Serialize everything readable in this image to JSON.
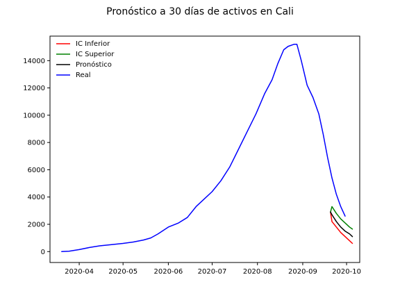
{
  "chart_data": {
    "type": "line",
    "title": "Pronóstico a 30 días de activos en Cali",
    "xlabel": "",
    "ylabel": "",
    "x_axis": {
      "type": "date",
      "range": [
        "2020-03-12",
        "2020-10-10"
      ],
      "tick_dates": [
        "2020-04-01",
        "2020-05-01",
        "2020-06-01",
        "2020-07-01",
        "2020-08-01",
        "2020-09-01",
        "2020-10-01"
      ],
      "tick_labels": [
        "2020-04",
        "2020-05",
        "2020-06",
        "2020-07",
        "2020-08",
        "2020-09",
        "2020-10"
      ]
    },
    "y_axis": {
      "range": [
        -800,
        15800
      ],
      "ticks": [
        0,
        2000,
        4000,
        6000,
        8000,
        10000,
        12000,
        14000
      ],
      "tick_labels": [
        "0",
        "2000",
        "4000",
        "6000",
        "8000",
        "10000",
        "12000",
        "14000"
      ]
    },
    "grid": false,
    "legend": {
      "placement": "top-left"
    },
    "series": [
      {
        "name": "IC Inferior",
        "color": "#ff0000",
        "points": [
          [
            "2020-09-20",
            2900
          ],
          [
            "2020-09-21",
            2200
          ],
          [
            "2020-09-24",
            1800
          ],
          [
            "2020-09-27",
            1400
          ],
          [
            "2020-09-30",
            1100
          ],
          [
            "2020-10-03",
            800
          ],
          [
            "2020-10-05",
            600
          ]
        ]
      },
      {
        "name": "IC Superior",
        "color": "#008000",
        "points": [
          [
            "2020-09-20",
            2900
          ],
          [
            "2020-09-21",
            3300
          ],
          [
            "2020-09-24",
            2800
          ],
          [
            "2020-09-27",
            2400
          ],
          [
            "2020-09-30",
            2100
          ],
          [
            "2020-10-03",
            1800
          ],
          [
            "2020-10-05",
            1650
          ]
        ]
      },
      {
        "name": "Pronóstico",
        "color": "#000000",
        "points": [
          [
            "2020-09-20",
            2900
          ],
          [
            "2020-09-21",
            2700
          ],
          [
            "2020-09-24",
            2200
          ],
          [
            "2020-09-27",
            1800
          ],
          [
            "2020-09-30",
            1500
          ],
          [
            "2020-10-03",
            1300
          ],
          [
            "2020-10-05",
            1100
          ]
        ]
      },
      {
        "name": "Real",
        "color": "#0000ff",
        "points": [
          [
            "2020-03-20",
            0
          ],
          [
            "2020-03-25",
            30
          ],
          [
            "2020-04-01",
            150
          ],
          [
            "2020-04-08",
            300
          ],
          [
            "2020-04-15",
            420
          ],
          [
            "2020-04-22",
            500
          ],
          [
            "2020-05-01",
            600
          ],
          [
            "2020-05-08",
            700
          ],
          [
            "2020-05-15",
            850
          ],
          [
            "2020-05-20",
            1000
          ],
          [
            "2020-05-25",
            1300
          ],
          [
            "2020-06-01",
            1800
          ],
          [
            "2020-06-08",
            2100
          ],
          [
            "2020-06-14",
            2500
          ],
          [
            "2020-06-20",
            3300
          ],
          [
            "2020-06-26",
            3900
          ],
          [
            "2020-07-01",
            4400
          ],
          [
            "2020-07-07",
            5200
          ],
          [
            "2020-07-13",
            6200
          ],
          [
            "2020-07-19",
            7500
          ],
          [
            "2020-07-25",
            8800
          ],
          [
            "2020-07-31",
            10100
          ],
          [
            "2020-08-06",
            11600
          ],
          [
            "2020-08-11",
            12600
          ],
          [
            "2020-08-15",
            13800
          ],
          [
            "2020-08-19",
            14800
          ],
          [
            "2020-08-22",
            15050
          ],
          [
            "2020-08-26",
            15200
          ],
          [
            "2020-08-28",
            15200
          ],
          [
            "2020-08-31",
            14000
          ],
          [
            "2020-09-04",
            12200
          ],
          [
            "2020-09-08",
            11300
          ],
          [
            "2020-09-12",
            10100
          ],
          [
            "2020-09-15",
            8600
          ],
          [
            "2020-09-18",
            6900
          ],
          [
            "2020-09-21",
            5400
          ],
          [
            "2020-09-24",
            4200
          ],
          [
            "2020-09-27",
            3300
          ],
          [
            "2020-09-30",
            2600
          ]
        ]
      }
    ]
  }
}
